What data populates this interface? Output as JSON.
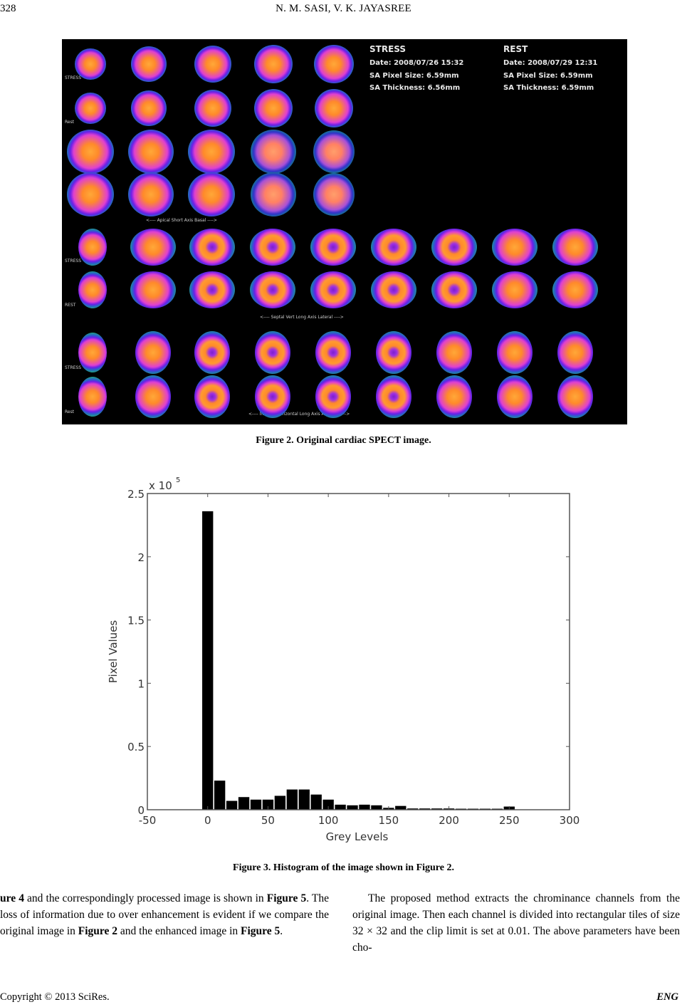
{
  "header": {
    "page_number": "328",
    "authors": "N. M. SASI, V. K. JAYASREE"
  },
  "figure2": {
    "caption": "Figure 2. Original cardiac SPECT image.",
    "stress_panel": {
      "title": "STRESS",
      "date": "Date: 2008/07/26 15:32",
      "pixel_size": "SA Pixel Size: 6.59mm",
      "thickness": "SA Thickness: 6.56mm"
    },
    "rest_panel": {
      "title": "REST",
      "date": "Date: 2008/07/29 12:31",
      "pixel_size": "SA Pixel Size: 6.59mm",
      "thickness": "SA Thickness: 6.59mm"
    },
    "row_labels": [
      "STRESS",
      "Rest",
      "STRESS",
      "REST",
      "STRESS",
      "Rest"
    ],
    "axis_labels": {
      "short_axis": "<---- Apical     Short Axis     Basal ---->",
      "vertical_long": "<---- Septal     Vert Long Axis     Lateral ---->",
      "horizontal_long": "<---- Inferior     Horizontal Long Axis     Anterior ---->"
    }
  },
  "figure3": {
    "caption": "Figure 3. Histogram of the image shown in Figure 2."
  },
  "chart_data": {
    "type": "bar",
    "title": "",
    "xlabel": "Grey Levels",
    "ylabel": "Pixel Values",
    "y_multiplier": "x 10^5",
    "xlim": [
      -50,
      300
    ],
    "ylim": [
      0,
      2.5
    ],
    "xticks": [
      -50,
      0,
      50,
      100,
      150,
      200,
      250,
      300
    ],
    "yticks": [
      0,
      0.5,
      1,
      1.5,
      2,
      2.5
    ],
    "grid": false,
    "categories": [
      0,
      10,
      20,
      30,
      40,
      50,
      60,
      70,
      80,
      90,
      100,
      110,
      120,
      130,
      140,
      150,
      160,
      170,
      180,
      190,
      200,
      210,
      220,
      230,
      240,
      250,
      255
    ],
    "values": [
      2.36,
      0.23,
      0.07,
      0.1,
      0.08,
      0.08,
      0.11,
      0.16,
      0.16,
      0.12,
      0.08,
      0.04,
      0.035,
      0.04,
      0.035,
      0.015,
      0.03,
      0.01,
      0.01,
      0.01,
      0.01,
      0.008,
      0.008,
      0.008,
      0.008,
      0.025,
      0.01
    ],
    "value_units": "x 10^5 pixels"
  },
  "body": {
    "left_column": [
      {
        "text": "ure 4",
        "bold": true
      },
      {
        "text": " and the correspondingly processed image is shown in ",
        "bold": false
      },
      {
        "text": "Figure 5",
        "bold": true
      },
      {
        "text": ". The loss of information due to over enhancement is evident if we compare the original image in ",
        "bold": false
      },
      {
        "text": "Figure 2",
        "bold": true
      },
      {
        "text": " and the enhanced image in ",
        "bold": false
      },
      {
        "text": "Figure 5",
        "bold": true
      },
      {
        "text": ".",
        "bold": false
      }
    ],
    "right_column": "The proposed method extracts the chrominance channels from the original image. Then each channel is divided into rectangular tiles of size 32 × 32 and the clip limit is set at 0.01. The above parameters have been cho-"
  },
  "footer": {
    "copyright": "Copyright © 2013 SciRes.",
    "journal": "ENG"
  }
}
